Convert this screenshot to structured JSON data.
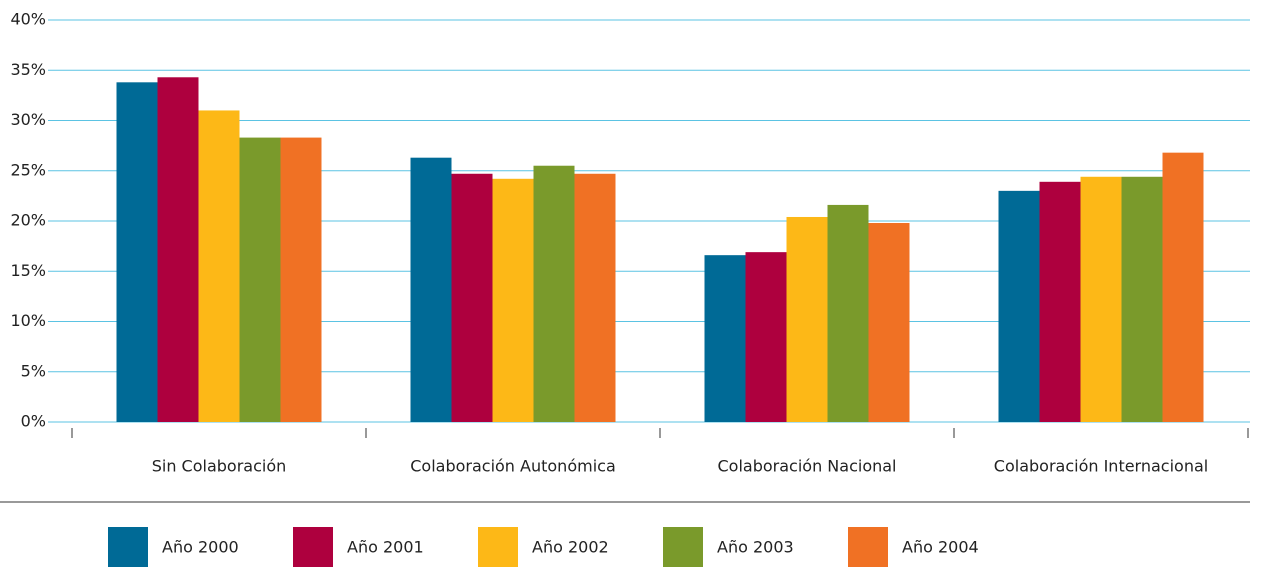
{
  "chart_data": {
    "type": "bar",
    "categories": [
      "Sin Colaboración",
      "Colaboración Autonómica",
      "Colaboración Nacional",
      "Colaboración Internacional"
    ],
    "series": [
      {
        "name": "Año 2000",
        "color": "#006a96",
        "values": [
          33.8,
          26.3,
          16.6,
          23.0
        ]
      },
      {
        "name": "Año 2001",
        "color": "#ae003e",
        "values": [
          34.3,
          24.7,
          16.9,
          23.9
        ]
      },
      {
        "name": "Año 2002",
        "color": "#fdb817",
        "values": [
          31.0,
          24.2,
          20.4,
          24.4
        ]
      },
      {
        "name": "Año 2003",
        "color": "#7a9a2b",
        "values": [
          28.3,
          25.5,
          21.6,
          24.4
        ]
      },
      {
        "name": "Año 2004",
        "color": "#f07124",
        "values": [
          28.3,
          24.7,
          19.8,
          26.8
        ]
      }
    ],
    "ylim": [
      0,
      40
    ],
    "yticks": [
      {
        "value": 0,
        "label": "0%"
      },
      {
        "value": 5,
        "label": "5%"
      },
      {
        "value": 10,
        "label": "10%"
      },
      {
        "value": 15,
        "label": "15%"
      },
      {
        "value": 20,
        "label": "20%"
      },
      {
        "value": 25,
        "label": "25%"
      },
      {
        "value": 30,
        "label": "30%"
      },
      {
        "value": 35,
        "label": "35%"
      },
      {
        "value": 40,
        "label": "40%"
      }
    ],
    "grid": true,
    "legend": "bottom"
  }
}
